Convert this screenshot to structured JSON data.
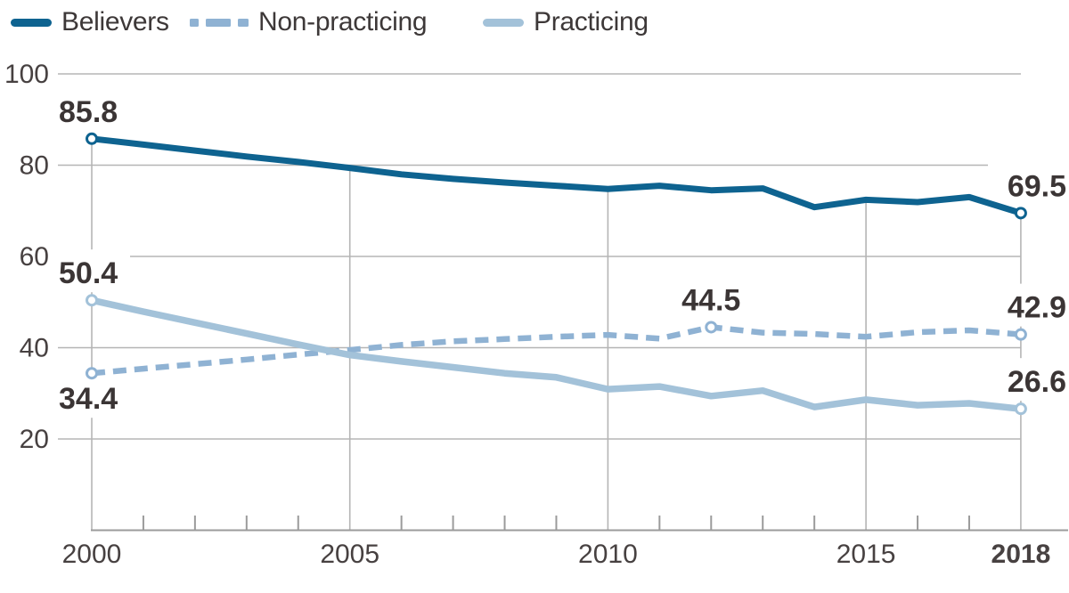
{
  "legend": {
    "items": [
      {
        "label": "Believers",
        "color": "#0e6390",
        "style": "solid"
      },
      {
        "label": "Non-practicing",
        "color": "#8fb2d3",
        "style": "dashed"
      },
      {
        "label": "Practicing",
        "color": "#a3c2d9",
        "style": "solid"
      }
    ]
  },
  "chart_data": {
    "type": "line",
    "title": "",
    "x": [
      2000,
      2001,
      2002,
      2003,
      2004,
      2005,
      2006,
      2007,
      2008,
      2009,
      2010,
      2011,
      2012,
      2013,
      2014,
      2015,
      2016,
      2017,
      2018
    ],
    "x_axis": {
      "range": [
        2000,
        2018
      ],
      "major_ticks": [
        2000,
        2005,
        2010,
        2015,
        2018
      ],
      "bold_tick": 2018
    },
    "y_axis": {
      "ticks": [
        100,
        80,
        60,
        40,
        20
      ],
      "range": [
        0,
        100
      ]
    },
    "grid": "horizontal lines at y ticks; vertical drop lines at major years; minor year ticks on x axis",
    "legend_position": "top-left",
    "series": [
      {
        "id": "believers",
        "name": "Believers",
        "color": "#0e6390",
        "width": 7,
        "dash": false,
        "values": [
          85.8,
          84.5,
          83.2,
          81.9,
          80.7,
          79.4,
          78.0,
          77.0,
          76.2,
          75.5,
          74.8,
          75.5,
          74.5,
          74.9,
          70.8,
          72.4,
          71.9,
          73.0,
          69.5
        ],
        "marker_years": [
          2000,
          2018
        ]
      },
      {
        "id": "non-practicing",
        "name": "Non-practicing",
        "color": "#8fb2d3",
        "width": 6.5,
        "dash": true,
        "values": [
          34.4,
          35.4,
          36.4,
          37.4,
          38.5,
          39.5,
          40.6,
          41.4,
          41.9,
          42.4,
          42.8,
          42.0,
          44.5,
          43.3,
          43.0,
          42.4,
          43.4,
          43.8,
          42.9
        ],
        "marker_years": [
          2000,
          2012,
          2018
        ]
      },
      {
        "id": "practicing",
        "name": "Practicing",
        "color": "#a3c2d9",
        "width": 7.5,
        "dash": false,
        "values": [
          50.4,
          47.9,
          45.5,
          43.1,
          40.7,
          38.4,
          37.0,
          35.7,
          34.4,
          33.5,
          30.9,
          31.5,
          29.4,
          30.6,
          27.0,
          28.6,
          27.4,
          27.8,
          26.6
        ],
        "marker_years": [
          2000,
          2018
        ]
      }
    ],
    "annotations": [
      {
        "series": 0,
        "year": 2000,
        "text": "85.8",
        "align": "left",
        "vpos": "above"
      },
      {
        "series": 0,
        "year": 2018,
        "text": "69.5",
        "align": "right",
        "vpos": "above"
      },
      {
        "series": 1,
        "year": 2000,
        "text": "34.4",
        "align": "left",
        "vpos": "below"
      },
      {
        "series": 1,
        "year": 2012,
        "text": "44.5",
        "align": "center",
        "vpos": "above"
      },
      {
        "series": 1,
        "year": 2018,
        "text": "42.9",
        "align": "right",
        "vpos": "above"
      },
      {
        "series": 2,
        "year": 2000,
        "text": "50.4",
        "align": "left",
        "vpos": "above"
      },
      {
        "series": 2,
        "year": 2018,
        "text": "26.6",
        "align": "right",
        "vpos": "above"
      }
    ],
    "style": {
      "grid_color": "#b5b5b5",
      "axis_color": "#9b9b9b",
      "tick_text_color": "#474141",
      "label_text_color": "#3b3535",
      "background": "#ffffff"
    }
  }
}
